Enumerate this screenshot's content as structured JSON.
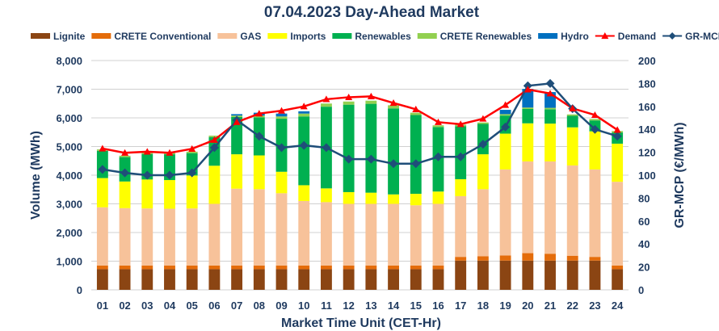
{
  "chart_data": {
    "type": "bar",
    "stacked": true,
    "title": "07.04.2023  Day-Ahead Market",
    "xlabel": "Market Time Unit (CET-Hr)",
    "ylabel": "Volume (MWh)",
    "y2label": "GR-MCP (€/MWh)",
    "ylim": [
      0,
      8000
    ],
    "y2lim": [
      0,
      200
    ],
    "yticks": [
      "0",
      "1,000",
      "2,000",
      "3,000",
      "4,000",
      "5,000",
      "6,000",
      "7,000",
      "8,000"
    ],
    "y2ticks": [
      "0",
      "20",
      "40",
      "60",
      "80",
      "100",
      "120",
      "140",
      "160",
      "180",
      "200"
    ],
    "grid": true,
    "legend_position": "top",
    "categories": [
      "01",
      "02",
      "03",
      "04",
      "05",
      "06",
      "07",
      "08",
      "09",
      "10",
      "11",
      "12",
      "13",
      "14",
      "15",
      "16",
      "17",
      "18",
      "19",
      "20",
      "21",
      "22",
      "23",
      "24"
    ],
    "series": [
      {
        "name": "Lignite",
        "color": "#8b4513",
        "values": [
          720,
          720,
          720,
          720,
          720,
          720,
          720,
          720,
          720,
          720,
          720,
          720,
          720,
          720,
          720,
          720,
          1020,
          1020,
          1020,
          1020,
          1020,
          1020,
          1020,
          720
        ]
      },
      {
        "name": "CRETE Conventional",
        "color": "#e46c0a",
        "values": [
          130,
          130,
          130,
          130,
          130,
          130,
          130,
          130,
          130,
          130,
          130,
          130,
          130,
          130,
          130,
          130,
          130,
          150,
          180,
          260,
          240,
          170,
          130,
          130
        ]
      },
      {
        "name": "GAS",
        "color": "#f7c29a",
        "values": [
          2030,
          2000,
          1990,
          1980,
          1990,
          2150,
          2680,
          2660,
          2520,
          2250,
          2210,
          2150,
          2150,
          2150,
          2100,
          2150,
          2120,
          2340,
          3000,
          3200,
          3220,
          3150,
          3050,
          2920
        ]
      },
      {
        "name": "Imports",
        "color": "#ffff00",
        "values": [
          1020,
          930,
          1010,
          1000,
          1150,
          1330,
          1200,
          1180,
          750,
          550,
          480,
          410,
          390,
          330,
          400,
          430,
          590,
          1220,
          1250,
          1330,
          1320,
          1330,
          1330,
          1330
        ]
      },
      {
        "name": "Renewables",
        "color": "#00b050",
        "values": [
          950,
          850,
          890,
          900,
          780,
          1000,
          1300,
          1330,
          1850,
          2400,
          2850,
          3050,
          3100,
          3000,
          2750,
          2250,
          1850,
          1060,
          630,
          500,
          500,
          400,
          380,
          390
        ]
      },
      {
        "name": "CRETE Renewables",
        "color": "#92d050",
        "values": [
          50,
          50,
          50,
          50,
          50,
          50,
          50,
          60,
          80,
          100,
          110,
          110,
          110,
          110,
          80,
          60,
          50,
          50,
          50,
          50,
          50,
          50,
          50,
          50
        ]
      },
      {
        "name": "Hydro",
        "color": "#0070c0",
        "values": [
          0,
          0,
          0,
          0,
          0,
          0,
          50,
          100,
          100,
          80,
          0,
          0,
          0,
          0,
          0,
          0,
          0,
          0,
          150,
          650,
          550,
          0,
          0,
          0
        ]
      }
    ],
    "demand": {
      "name": "Demand",
      "color": "#ff0000",
      "values": [
        4930,
        4780,
        4820,
        4780,
        4920,
        5230,
        5850,
        6150,
        6250,
        6400,
        6650,
        6720,
        6750,
        6520,
        6300,
        5850,
        5780,
        5970,
        6450,
        6990,
        6850,
        6330,
        6100,
        5580
      ]
    },
    "mcp": {
      "name": "GR-MCP",
      "color": "#1f4e79",
      "values": [
        105,
        102,
        100,
        100,
        102,
        124,
        148,
        134,
        124,
        126,
        124,
        114,
        114,
        110,
        110,
        116,
        116,
        127,
        142,
        178,
        180,
        158,
        140,
        134
      ]
    }
  }
}
